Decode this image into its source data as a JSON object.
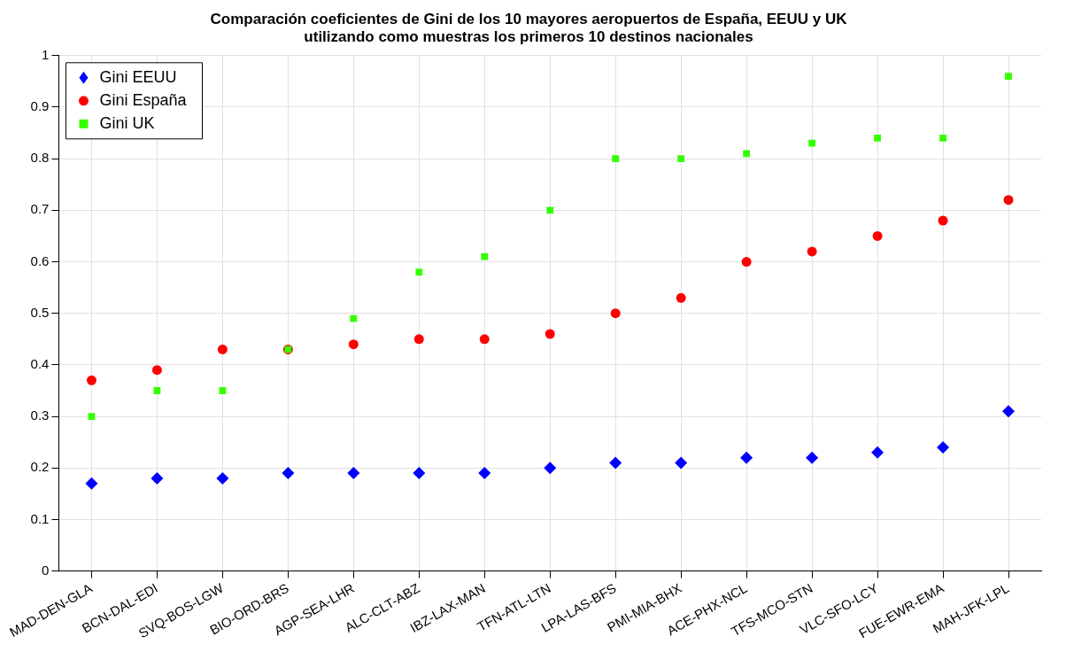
{
  "chart_data": {
    "type": "scatter",
    "title": "Comparación coeficientes de Gini de los 10 mayores aeropuertos de España, EEUU y UK\nutilizando como muestras los primeros 10 destinos nacionales",
    "categories": [
      "MAD-DEN-GLA",
      "BCN-DAL-EDI",
      "SVQ-BOS-LGW",
      "BIO-ORD-BRS",
      "AGP-SEA-LHR",
      "ALC-CLT-ABZ",
      "IBZ-LAX-MAN",
      "TFN-ATL-LTN",
      "LPA-LAS-BFS",
      "PMI-MIA-BHX",
      "ACE-PHX-NCL",
      "TFS-MCO-STN",
      "VLC-SFO-LCY",
      "FUE-EWR-EMA",
      "MAH-JFK-LPL"
    ],
    "series": [
      {
        "name": "Gini EEUU",
        "color": "#0000ff",
        "marker": "diamond",
        "values": [
          0.17,
          0.18,
          0.18,
          0.19,
          0.19,
          0.19,
          0.19,
          0.2,
          0.21,
          0.21,
          0.22,
          0.22,
          0.23,
          0.24,
          0.31
        ]
      },
      {
        "name": "Gini España",
        "color": "#ff0000",
        "marker": "circle",
        "values": [
          0.37,
          0.39,
          0.43,
          0.43,
          0.44,
          0.45,
          0.45,
          0.46,
          0.5,
          0.53,
          0.6,
          0.62,
          0.65,
          0.68,
          0.72
        ]
      },
      {
        "name": "Gini UK",
        "color": "#33ff00",
        "marker": "square",
        "values": [
          0.3,
          0.35,
          0.35,
          0.43,
          0.49,
          0.58,
          0.61,
          0.7,
          0.8,
          0.8,
          0.81,
          0.83,
          0.84,
          0.84,
          0.96
        ]
      }
    ],
    "ylim": [
      0,
      1
    ],
    "yticks": [
      0,
      0.1,
      0.2,
      0.3,
      0.4,
      0.5,
      0.6,
      0.7,
      0.8,
      0.9,
      1
    ],
    "grid": true,
    "legend": "top left"
  }
}
